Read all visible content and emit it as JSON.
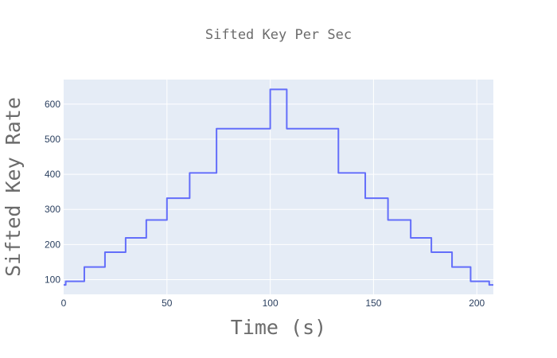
{
  "chart_data": {
    "type": "line",
    "title": "Sifted Key Per Sec",
    "xlabel": "Time (s)",
    "ylabel": "Sifted Key Rate",
    "xlim": [
      0,
      208
    ],
    "ylim": [
      58,
      670
    ],
    "x_ticks": [
      0,
      50,
      100,
      150,
      200
    ],
    "y_ticks": [
      100,
      200,
      300,
      400,
      500,
      600
    ],
    "grid": true,
    "legend": "none",
    "colors": {
      "line": "#636efa",
      "plot_bg": "#e5ecf6",
      "grid": "#ffffff"
    },
    "series": [
      {
        "line_shape": "step",
        "x": [
          0,
          1,
          10,
          20,
          30,
          40,
          50,
          61,
          74,
          100,
          108,
          133,
          146,
          157,
          168,
          178,
          188,
          197,
          206,
          208
        ],
        "y": [
          85,
          95,
          136,
          178,
          219,
          270,
          332,
          404,
          530,
          642,
          530,
          404,
          332,
          270,
          219,
          178,
          136,
          95,
          85,
          85
        ]
      }
    ]
  }
}
